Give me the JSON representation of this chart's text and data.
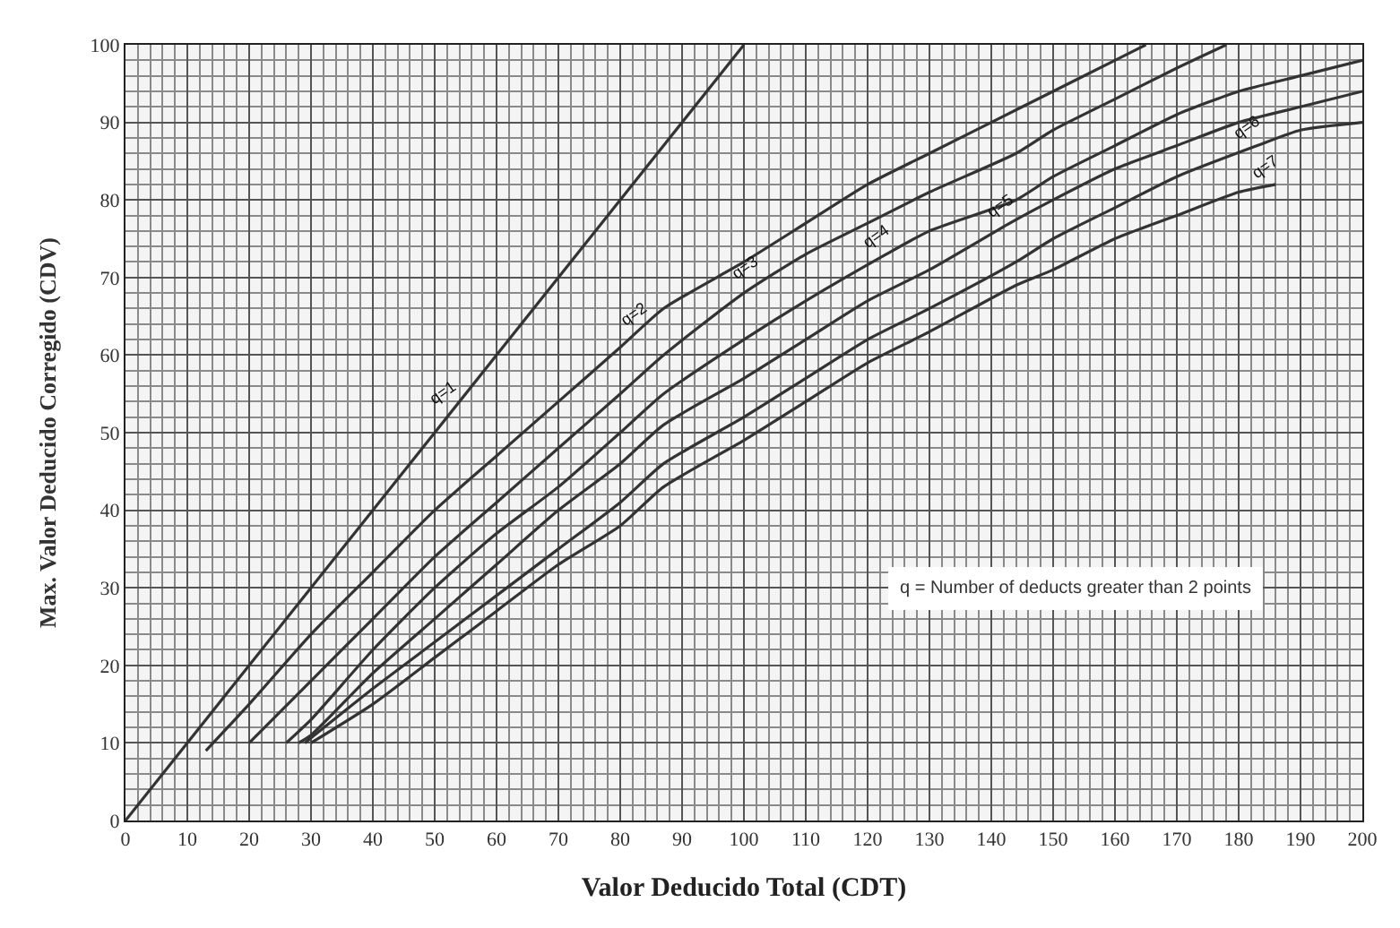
{
  "chart_data": {
    "type": "line",
    "xlabel": "Valor Deducido Total (CDT)",
    "ylabel": "Max. Valor Deducido Corregido (CDV)",
    "xlim": [
      0,
      200
    ],
    "ylim": [
      0,
      100
    ],
    "xticks": [
      0,
      10,
      20,
      30,
      40,
      50,
      60,
      70,
      80,
      90,
      100,
      110,
      120,
      130,
      140,
      150,
      160,
      170,
      180,
      190,
      200
    ],
    "yticks": [
      0,
      10,
      20,
      30,
      40,
      50,
      60,
      70,
      80,
      90,
      100
    ],
    "grid": true,
    "marker": "none",
    "line_style": "solid",
    "series": [
      {
        "color": "#333333",
        "x": [
          0,
          100
        ],
        "values": [
          0,
          100
        ]
      },
      {
        "color": "#333333",
        "x": [
          13,
          20,
          30,
          40,
          50,
          60,
          70,
          80,
          87,
          100,
          110,
          120,
          130,
          140,
          150,
          160,
          165
        ],
        "values": [
          9,
          15,
          24,
          32,
          40,
          47,
          54,
          61,
          66,
          72,
          77,
          82,
          86,
          90,
          94,
          98,
          100
        ]
      },
      {
        "color": "#333333",
        "x": [
          20,
          30,
          40,
          50,
          60,
          70,
          80,
          87,
          100,
          110,
          120,
          130,
          144,
          150,
          160,
          170,
          178
        ],
        "values": [
          10,
          18,
          26,
          34,
          41,
          48,
          55,
          60,
          68,
          73,
          77,
          81,
          86,
          89,
          93,
          97,
          100
        ]
      },
      {
        "color": "#333333",
        "x": [
          26,
          30,
          40,
          50,
          60,
          70,
          80,
          87,
          100,
          110,
          123,
          130,
          144,
          150,
          160,
          170,
          180,
          190,
          200
        ],
        "values": [
          10,
          13,
          22,
          30,
          37,
          43,
          50,
          55,
          62,
          67,
          73,
          76,
          80,
          83,
          87,
          91,
          94,
          96,
          98
        ]
      },
      {
        "color": "#333333",
        "x": [
          28,
          30,
          40,
          50,
          60,
          70,
          80,
          87,
          100,
          110,
          120,
          130,
          143,
          150,
          160,
          170,
          180,
          190,
          200
        ],
        "values": [
          10,
          11,
          19,
          26,
          33,
          40,
          46,
          51,
          57,
          62,
          67,
          71,
          77,
          80,
          84,
          87,
          90,
          92,
          94
        ]
      },
      {
        "color": "#333333",
        "x": [
          29,
          40,
          50,
          60,
          70,
          80,
          87,
          100,
          110,
          120,
          130,
          144,
          150,
          160,
          170,
          183,
          190,
          200
        ],
        "values": [
          10,
          17,
          23,
          29,
          35,
          41,
          46,
          52,
          57,
          62,
          66,
          72,
          75,
          79,
          83,
          87,
          89,
          90
        ]
      },
      {
        "color": "#333333",
        "x": [
          30,
          40,
          50,
          60,
          70,
          80,
          87,
          100,
          110,
          120,
          130,
          144,
          150,
          160,
          170,
          180,
          186
        ],
        "values": [
          10,
          15,
          21,
          27,
          33,
          38,
          43,
          49,
          54,
          59,
          63,
          69,
          71,
          75,
          78,
          81,
          82
        ]
      }
    ],
    "annotations": [
      {
        "text": "q=1",
        "x": 53,
        "y": 53
      },
      {
        "text": "q=2",
        "x": 84,
        "y": 63
      },
      {
        "text": "q=3",
        "x": 102,
        "y": 69
      },
      {
        "text": "q=4",
        "x": 123,
        "y": 73
      },
      {
        "text": "q=5",
        "x": 143,
        "y": 77
      },
      {
        "text": "q=6",
        "x": 183,
        "y": 87
      },
      {
        "text": "q=7",
        "x": 186,
        "y": 82
      },
      "q = Number of deducts greater than 2 points"
    ]
  }
}
